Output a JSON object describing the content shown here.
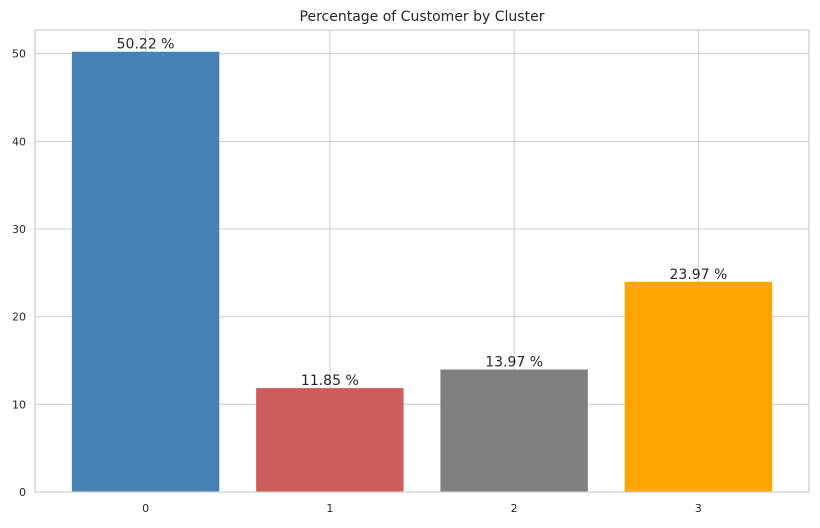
{
  "chart_data": {
    "type": "bar",
    "title": "Percentage of Customer by Cluster",
    "xlabel": "",
    "ylabel": "",
    "categories": [
      "0",
      "1",
      "2",
      "3"
    ],
    "values": [
      50.22,
      11.85,
      13.97,
      23.97
    ],
    "data_labels": [
      "50.22 %",
      "11.85 %",
      "13.97 %",
      "23.97 %"
    ],
    "colors": [
      "#4682b4",
      "#cd5c5c",
      "#808080",
      "#ffa500"
    ],
    "ylim": [
      0,
      52.7
    ],
    "yticks": [
      0,
      10,
      20,
      30,
      40,
      50
    ],
    "ytick_labels": [
      "0",
      "10",
      "20",
      "30",
      "40",
      "50"
    ],
    "grid": true,
    "legend": "none"
  }
}
